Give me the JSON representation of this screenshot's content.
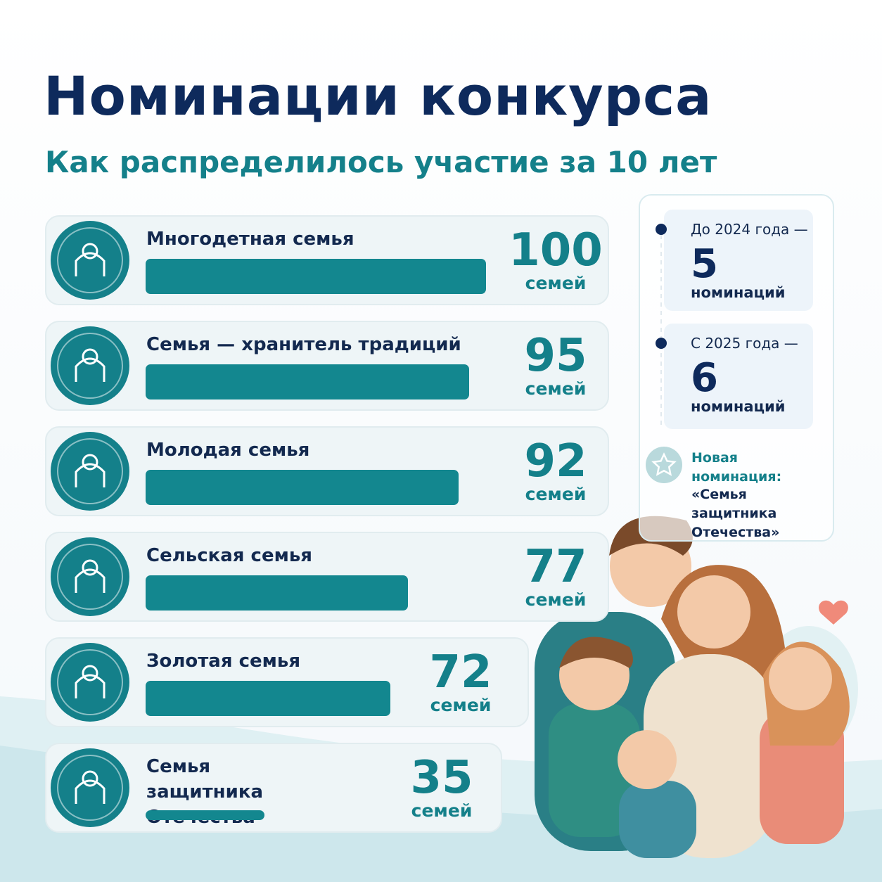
{
  "chart_data": {
    "type": "bar",
    "orientation": "horizontal",
    "title": "Номинации конкурса",
    "subtitle": "Как распределилось участие за 10 лет",
    "categories": [
      "Многодетная семья",
      "Семья — хранитель традиций",
      "Молодая семья",
      "Сельская семья",
      "Золотая семья",
      "Семья защитника Отечества"
    ],
    "values": [
      100,
      95,
      92,
      77,
      72,
      35
    ],
    "unit": "семей",
    "color": "#13878f"
  },
  "side_panel": {
    "entries": [
      {
        "period": "До 2024 года —",
        "count": "5",
        "label": "номинаций"
      },
      {
        "period": "С 2025 года —",
        "count": "6",
        "label": "номинаций"
      }
    ],
    "new_nomination": {
      "heading": "Новая номинация:",
      "name": "«Семья защитника Отечества»"
    }
  }
}
